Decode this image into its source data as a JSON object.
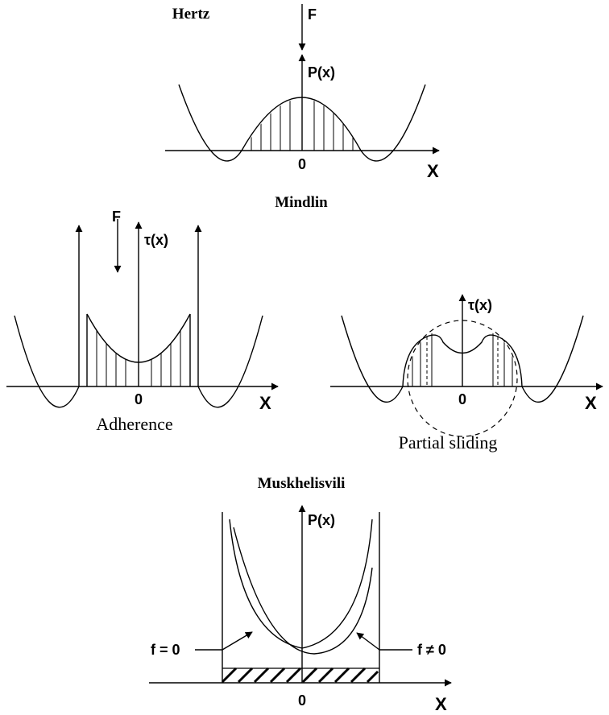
{
  "hertz": {
    "title": "Hertz",
    "force_label": "F",
    "pressure_label": "P(x)",
    "origin_label": "0",
    "x_axis_label": "X"
  },
  "mindlin": {
    "title": "Mindlin",
    "adherence": {
      "force_label": "F",
      "shear_label": "τ(x)",
      "origin_label": "0",
      "x_axis_label": "X",
      "caption": "Adherence"
    },
    "partial_sliding": {
      "shear_label": "τ(x)",
      "origin_label": "0",
      "x_axis_label": "X",
      "caption": "Partial sliding"
    }
  },
  "muskhelisvili": {
    "title": "Muskhelisvili",
    "pressure_label": "P(x)",
    "origin_label": "0",
    "x_axis_label": "X",
    "label_f_zero": "f = 0",
    "label_f_nonzero": "f ≠ 0"
  }
}
